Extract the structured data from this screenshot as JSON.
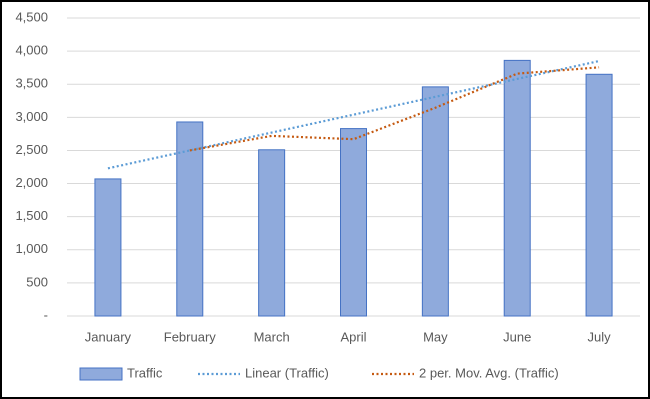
{
  "chart_data": {
    "type": "bar",
    "categories": [
      "January",
      "February",
      "March",
      "April",
      "May",
      "June",
      "July"
    ],
    "series": [
      {
        "name": "Traffic",
        "type": "bar",
        "color": "#8faadc",
        "stroke": "#4472c4",
        "values": [
          2070,
          2930,
          2510,
          2830,
          3460,
          3860,
          3650
        ]
      },
      {
        "name": "Linear (Traffic)",
        "type": "line",
        "style": "dotted",
        "color": "#5b9bd5",
        "values": [
          2230,
          2500,
          2770,
          3040,
          3310,
          3580,
          3850
        ]
      },
      {
        "name": "2 per. Mov. Avg. (Traffic)",
        "type": "line",
        "style": "dotted",
        "color": "#c55a11",
        "values": [
          null,
          2500,
          2720,
          2670,
          3145,
          3660,
          3755
        ]
      }
    ],
    "ylim": [
      0,
      4500
    ],
    "yticks": [
      {
        "value": 0,
        "label": "-"
      },
      500,
      {
        "value": 1000,
        "label": "1,000"
      },
      {
        "value": 1500,
        "label": "1,500"
      },
      {
        "value": 2000,
        "label": "2,000"
      },
      {
        "value": 2500,
        "label": "2,500"
      },
      {
        "value": 3000,
        "label": "3,000"
      },
      {
        "value": 3500,
        "label": "3,500"
      },
      {
        "value": 4000,
        "label": "4,000"
      },
      {
        "value": 4500,
        "label": "4,500"
      }
    ],
    "grid": true,
    "legend": "bottom"
  }
}
